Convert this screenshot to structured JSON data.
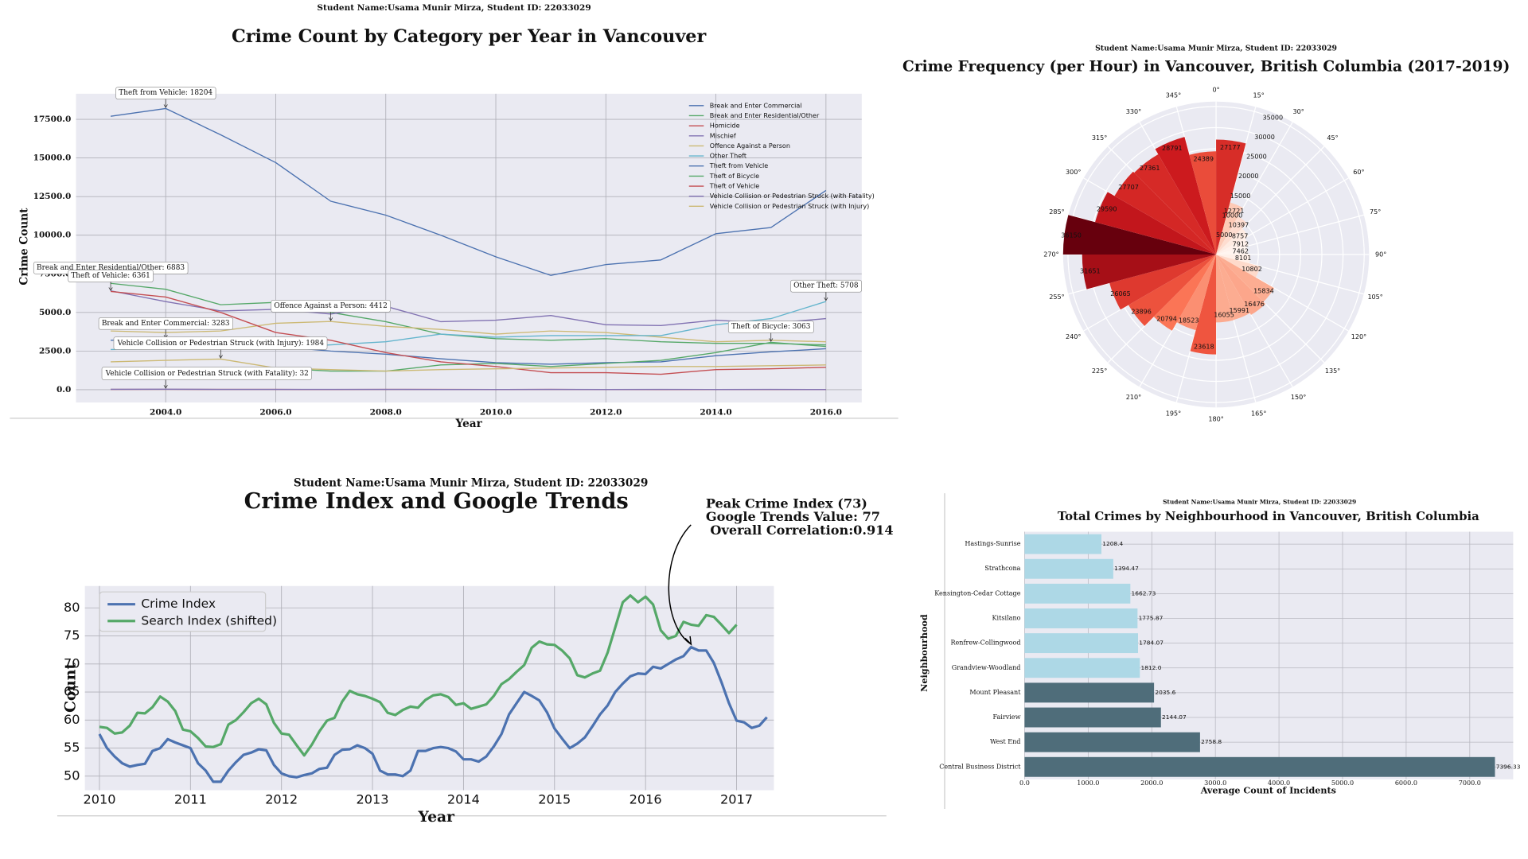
{
  "chart_data": [
    {
      "type": "line",
      "subtitle": "Student Name:Usama Munir Mirza, Student ID: 22033029",
      "title": "Crime Count by Category per Year in Vancouver",
      "xlabel": "Year",
      "ylabel": "Crime Count",
      "x": [
        2003,
        2004,
        2005,
        2006,
        2007,
        2008,
        2009,
        2010,
        2011,
        2012,
        2013,
        2014,
        2015,
        2016
      ],
      "xlim": [
        2002.37,
        2016.65
      ],
      "ylim": [
        -830,
        19160
      ],
      "xticks": [
        {
          "value": 2004,
          "label": "2004.0"
        },
        {
          "value": 2006,
          "label": "2006.0"
        },
        {
          "value": 2008,
          "label": "2008.0"
        },
        {
          "value": 2010,
          "label": "2010.0"
        },
        {
          "value": 2012,
          "label": "2012.0"
        },
        {
          "value": 2014,
          "label": "2014.0"
        },
        {
          "value": 2016,
          "label": "2016.0"
        }
      ],
      "yticks": [
        {
          "value": 0,
          "label": "0.0"
        },
        {
          "value": 2500,
          "label": "2500.0"
        },
        {
          "value": 5000,
          "label": "5000.0"
        },
        {
          "value": 7500,
          "label": "7500.0"
        },
        {
          "value": 10000,
          "label": "10000.0"
        },
        {
          "value": 12500,
          "label": "12500.0"
        },
        {
          "value": 15000,
          "label": "15000.0"
        },
        {
          "value": 17500,
          "label": "17500.0"
        }
      ],
      "grid": true,
      "legend": "upper right",
      "series": [
        {
          "name": "Break and Enter Commercial",
          "color": "#4c72b0",
          "values": [
            3200,
            3283,
            3000,
            2800,
            2500,
            2300,
            2000,
            1750,
            1650,
            1750,
            1800,
            2200,
            2450,
            2650
          ]
        },
        {
          "name": "Break and Enter Residential/Other",
          "color": "#55a868",
          "values": [
            6883,
            6500,
            5500,
            5650,
            5000,
            4400,
            3600,
            3300,
            3200,
            3300,
            3100,
            3000,
            3000,
            2900
          ]
        },
        {
          "name": "Homicide",
          "color": "#c44e52",
          "values": [
            19,
            22,
            18,
            18,
            12,
            18,
            18,
            11,
            16,
            9,
            7,
            11,
            14,
            10
          ]
        },
        {
          "name": "Mischief",
          "color": "#8172b2",
          "values": [
            6400,
            5700,
            5100,
            5200,
            4900,
            5400,
            4400,
            4500,
            4800,
            4200,
            4150,
            4500,
            4300,
            4600
          ]
        },
        {
          "name": "Offence Against a Person",
          "color": "#ccb974",
          "values": [
            3800,
            3700,
            3800,
            4300,
            4412,
            4100,
            3900,
            3600,
            3800,
            3700,
            3400,
            3100,
            3200,
            3100
          ]
        },
        {
          "name": "Other Theft",
          "color": "#64b5cd",
          "values": [
            2600,
            2650,
            2700,
            2700,
            2900,
            3100,
            3600,
            3400,
            3500,
            3500,
            3500,
            4200,
            4600,
            5708
          ]
        },
        {
          "name": "Theft from Vehicle",
          "color": "#4c72b0",
          "values": [
            17700,
            18204,
            16500,
            14700,
            12200,
            11300,
            10000,
            8600,
            7400,
            8100,
            8400,
            10100,
            10500,
            12900
          ]
        },
        {
          "name": "Theft of Bicycle",
          "color": "#55a868",
          "values": [
            1400,
            1300,
            1300,
            1400,
            1200,
            1200,
            1600,
            1700,
            1500,
            1700,
            1900,
            2400,
            3063,
            2800
          ]
        },
        {
          "name": "Theft of Vehicle",
          "color": "#c44e52",
          "values": [
            6361,
            6000,
            5000,
            3700,
            3200,
            2400,
            1800,
            1500,
            1100,
            1100,
            1000,
            1300,
            1350,
            1450
          ]
        },
        {
          "name": "Vehicle Collision or Pedestrian Struck (with Fatality)",
          "color": "#8172b2",
          "values": [
            25,
            32,
            20,
            20,
            18,
            20,
            15,
            12,
            17,
            13,
            18,
            15,
            16,
            14
          ]
        },
        {
          "name": "Vehicle Collision or Pedestrian Struck (with Injury)",
          "color": "#ccb974",
          "values": [
            1800,
            1900,
            1984,
            1400,
            1300,
            1200,
            1300,
            1350,
            1400,
            1450,
            1500,
            1500,
            1550,
            1600
          ]
        }
      ],
      "annotations": [
        {
          "text": "Theft from Vehicle: 18204",
          "x": 2004,
          "y": 18204
        },
        {
          "text": "Break and Enter Residential/Other: 6883",
          "x": 2003,
          "y": 6883
        },
        {
          "text": "Theft of Vehicle: 6361",
          "x": 2003,
          "y": 6361
        },
        {
          "text": "Offence Against a Person: 4412",
          "x": 2007,
          "y": 4412
        },
        {
          "text": "Break and Enter Commercial: 3283",
          "x": 2004,
          "y": 3283
        },
        {
          "text": "Vehicle Collision or Pedestrian Struck (with Injury): 1984",
          "x": 2005,
          "y": 1984
        },
        {
          "text": "Vehicle Collision or Pedestrian Struck (with Fatality): 32",
          "x": 2004,
          "y": 32
        },
        {
          "text": "Theft of Bicycle: 3063",
          "x": 2015,
          "y": 3063
        },
        {
          "text": "Other Theft: 5708",
          "x": 2016,
          "y": 5708
        }
      ]
    },
    {
      "type": "polar_bar",
      "subtitle": "Student Name:Usama Munir Mirza, Student ID: 22033029",
      "title": "Crime Frequency (per Hour) in Vancouver, British Columbia (2017-2019)",
      "values": [
        27177,
        12721,
        10397,
        8757,
        7912,
        7462,
        8101,
        10802,
        15834,
        16476,
        15991,
        16055,
        23618,
        18523,
        20794,
        23896,
        26065,
        31651,
        36150,
        29590,
        27707,
        27361,
        28791,
        24389
      ],
      "colormap": "Reds",
      "rlim": [
        0,
        36150
      ],
      "rticks": [
        5000,
        10000,
        15000,
        20000,
        25000,
        30000,
        35000
      ],
      "theta_ticks": [
        {
          "value": 0,
          "label": "0°"
        },
        {
          "value": 15,
          "label": "15°"
        },
        {
          "value": 30,
          "label": "30°"
        },
        {
          "value": 45,
          "label": "45°"
        },
        {
          "value": 60,
          "label": "60°"
        },
        {
          "value": 75,
          "label": "75°"
        },
        {
          "value": 90,
          "label": "90°"
        },
        {
          "value": 105,
          "label": "105°"
        },
        {
          "value": 120,
          "label": "120°"
        },
        {
          "value": 135,
          "label": "135°"
        },
        {
          "value": 150,
          "label": "150°"
        },
        {
          "value": 165,
          "label": "165°"
        },
        {
          "value": 180,
          "label": "180°"
        },
        {
          "value": 195,
          "label": "195°"
        },
        {
          "value": 210,
          "label": "210°"
        },
        {
          "value": 225,
          "label": "225°"
        },
        {
          "value": 240,
          "label": "240°"
        },
        {
          "value": 255,
          "label": "255°"
        },
        {
          "value": 270,
          "label": "270°"
        },
        {
          "value": 285,
          "label": "285°"
        },
        {
          "value": 300,
          "label": "300°"
        },
        {
          "value": 315,
          "label": "315°"
        },
        {
          "value": 330,
          "label": "330°"
        },
        {
          "value": 345,
          "label": "345°"
        }
      ]
    },
    {
      "type": "line",
      "subtitle": "Student Name:Usama Munir Mirza, Student ID: 22033029",
      "title": "Crime Index and Google Trends",
      "xlabel": "Year",
      "ylabel": "Count",
      "x": [
        2010,
        2010.083,
        2010.167,
        2010.25,
        2010.333,
        2010.417,
        2010.5,
        2010.583,
        2010.667,
        2010.75,
        2010.833,
        2010.917,
        2011,
        2011.083,
        2011.167,
        2011.25,
        2011.333,
        2011.417,
        2011.5,
        2011.583,
        2011.667,
        2011.75,
        2011.833,
        2011.917,
        2012,
        2012.083,
        2012.167,
        2012.25,
        2012.333,
        2012.417,
        2012.5,
        2012.583,
        2012.667,
        2012.75,
        2012.833,
        2012.917,
        2013,
        2013.083,
        2013.167,
        2013.25,
        2013.333,
        2013.417,
        2013.5,
        2013.583,
        2013.667,
        2013.75,
        2013.833,
        2013.917,
        2014,
        2014.083,
        2014.167,
        2014.25,
        2014.333,
        2014.417,
        2014.5,
        2014.583,
        2014.667,
        2014.75,
        2014.833,
        2014.917,
        2015,
        2015.083,
        2015.167,
        2015.25,
        2015.333,
        2015.417,
        2015.5,
        2015.583,
        2015.667,
        2015.75,
        2015.833,
        2015.917,
        2016,
        2016.083,
        2016.167,
        2016.25,
        2016.333,
        2016.417,
        2016.5,
        2016.583,
        2016.667,
        2016.75,
        2016.833,
        2016.917,
        2017,
        2017.083,
        2017.167,
        2017.25,
        2017.333
      ],
      "xlim": [
        2009.84,
        2017.41
      ],
      "ylim": [
        47.5,
        83.9
      ],
      "xticks": [
        2010,
        2011,
        2012,
        2013,
        2014,
        2015,
        2016,
        2017
      ],
      "yticks": [
        50,
        55,
        60,
        65,
        70,
        75,
        80
      ],
      "grid": true,
      "legend": "upper left",
      "series": [
        {
          "name": "Crime Index",
          "color": "#4c72b0",
          "values": [
            57.5,
            55,
            53.5,
            52.3,
            51.7,
            52,
            52.2,
            54.5,
            55,
            56.6,
            56,
            55.5,
            55,
            52.3,
            51,
            49,
            49,
            51,
            52.5,
            53.8,
            54.2,
            54.8,
            54.6,
            52,
            50.5,
            50,
            49.8,
            50.2,
            50.5,
            51.3,
            51.5,
            53.8,
            54.7,
            54.8,
            55.5,
            55,
            54,
            51,
            50.3,
            50.3,
            50,
            51,
            54.5,
            54.5,
            55,
            55.2,
            55,
            54.4,
            53,
            53,
            52.6,
            53.5,
            55.3,
            57.5,
            61,
            63,
            65,
            64.3,
            63.5,
            61.4,
            58.5,
            56.7,
            55,
            55.8,
            56.9,
            58.9,
            61,
            62.6,
            65,
            66.5,
            67.8,
            68.3,
            68.2,
            69.5,
            69.2,
            70,
            70.8,
            71.4,
            73,
            72.4,
            72.4,
            70.2,
            66.8,
            63,
            59.9,
            59.6,
            58.6,
            59,
            60.5
          ]
        },
        {
          "name": "Search Index (shifted)",
          "color": "#55a868",
          "values": [
            58.8,
            58.6,
            57.6,
            57.8,
            59,
            61.3,
            61.2,
            62.3,
            64.2,
            63.3,
            61.6,
            58.3,
            58,
            56.8,
            55.3,
            55.2,
            55.7,
            59.2,
            60,
            61.4,
            63,
            63.8,
            62.8,
            59.5,
            57.6,
            57.4,
            55.5,
            53.7,
            55.6,
            58,
            59.9,
            60.4,
            63.3,
            65.2,
            64.6,
            64.3,
            63.8,
            63.2,
            61.3,
            60.9,
            61.8,
            62.4,
            62.2,
            63.6,
            64.4,
            64.6,
            64.1,
            62.7,
            63,
            62,
            62.4,
            62.8,
            64.3,
            66.4,
            67.3,
            68.6,
            69.8,
            72.9,
            74,
            73.5,
            73.4,
            72.4,
            71,
            68,
            67.6,
            68.3,
            68.8,
            72,
            76.5,
            81,
            82.2,
            81,
            82,
            80.6,
            76,
            74.5,
            75,
            77.5,
            77,
            76.8,
            78.7,
            78.4,
            77,
            75.5,
            77,
            null,
            null,
            null,
            null
          ]
        }
      ],
      "annotation": {
        "lines": [
          "Peak Crime Index (73)",
          "Google Trends Value: 77",
          " Overall Correlation:0.914"
        ],
        "x": 2016.5,
        "y": 73
      }
    },
    {
      "type": "barh",
      "subtitle": "Student Name:Usama Munir Mirza, Student ID: 22033029",
      "title": "Total Crimes by Neighbourhood in Vancouver, British Columbia",
      "xlabel": "Average Count of Incidents",
      "ylabel": "Neighbourhood",
      "categories": [
        "Hastings-Sunrise",
        "Strathcona",
        "Kensington-Cedar Cottage",
        "Kitsilano",
        "Renfrew-Collingwood",
        "Grandview-Woodland",
        "Mount Pleasant",
        "Fairview",
        "West End",
        "Central Business District"
      ],
      "values": [
        1208.4,
        1394.47,
        1662.73,
        1775.87,
        1784.07,
        1812,
        2035.6,
        2144.07,
        2758.8,
        7396.33
      ],
      "value_labels": [
        "1208.4",
        "1394.47",
        "1662.73",
        "1775.87",
        "1784.07",
        "1812.0",
        "2035.6",
        "2144.07",
        "2758.8",
        "7396.33"
      ],
      "colors": [
        "#add8e6",
        "#add8e6",
        "#add8e6",
        "#add8e6",
        "#add8e6",
        "#add8e6",
        "#4f6d7a",
        "#4f6d7a",
        "#4f6d7a",
        "#4f6d7a"
      ],
      "xlim": [
        0,
        7683
      ],
      "xticks": [
        {
          "value": 0,
          "label": "0.0"
        },
        {
          "value": 1000,
          "label": "1000.0"
        },
        {
          "value": 2000,
          "label": "2000.0"
        },
        {
          "value": 3000,
          "label": "3000.0"
        },
        {
          "value": 4000,
          "label": "4000.0"
        },
        {
          "value": 5000,
          "label": "5000.0"
        },
        {
          "value": 6000,
          "label": "6000.0"
        },
        {
          "value": 7000,
          "label": "7000.0"
        }
      ],
      "grid": true
    }
  ]
}
